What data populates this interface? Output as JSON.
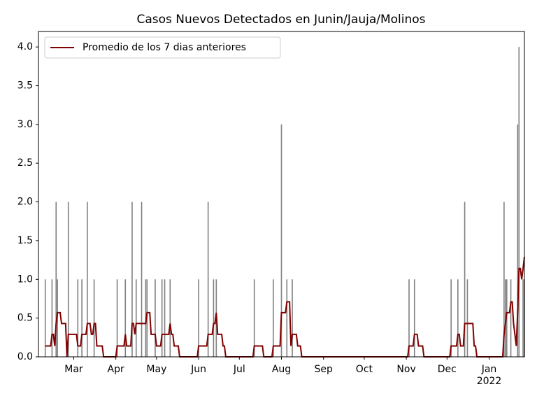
{
  "chart_data": {
    "type": "combo",
    "title": "Casos Nuevos Detectados en Junin/Jauja/Molinos",
    "xlim": [
      34,
      392
    ],
    "xticks": [
      {
        "value": 60,
        "label": "Mar"
      },
      {
        "value": 91,
        "label": "Apr"
      },
      {
        "value": 121,
        "label": "May"
      },
      {
        "value": 152,
        "label": "Jun"
      },
      {
        "value": 182,
        "label": "Jul"
      },
      {
        "value": 213,
        "label": "Aug"
      },
      {
        "value": 244,
        "label": "Sep"
      },
      {
        "value": 274,
        "label": "Oct"
      },
      {
        "value": 305,
        "label": "Nov"
      },
      {
        "value": 335,
        "label": "Dec"
      },
      {
        "value": 366,
        "label": "Jan\n2022"
      }
    ],
    "ylim": [
      0,
      4.2
    ],
    "yticks": [
      {
        "value": 0,
        "label": "0.0"
      },
      {
        "value": 0.5,
        "label": "0.5"
      },
      {
        "value": 1,
        "label": "1.0"
      },
      {
        "value": 1.5,
        "label": "1.5"
      },
      {
        "value": 2,
        "label": "2.0"
      },
      {
        "value": 2.5,
        "label": "2.5"
      },
      {
        "value": 3,
        "label": "3.0"
      },
      {
        "value": 3.5,
        "label": "3.5"
      },
      {
        "value": 4,
        "label": "4.0"
      }
    ],
    "legend": "upper left",
    "series": [
      {
        "type": "bar",
        "color": "#808080",
        "x": [
          39,
          44,
          47,
          48,
          56,
          63,
          66,
          70,
          75,
          92,
          98,
          103,
          106,
          110,
          113,
          114,
          120,
          125,
          127,
          131,
          152,
          159,
          163,
          165,
          193,
          207,
          213,
          217,
          221,
          307,
          311,
          338,
          343,
          348,
          350,
          377,
          378,
          379,
          382,
          387,
          388,
          391,
          392
        ],
        "values": [
          1,
          1,
          2,
          1,
          2,
          1,
          1,
          2,
          1,
          1,
          1,
          2,
          1,
          2,
          1,
          1,
          1,
          1,
          1,
          1,
          1,
          2,
          1,
          1,
          1,
          1,
          3,
          1,
          1,
          1,
          1,
          1,
          1,
          2,
          1,
          2,
          1,
          1,
          1,
          3,
          4,
          1,
          1
        ]
      },
      {
        "type": "line",
        "name": "Promedio de los 7 dias anteriores",
        "color": "#800000",
        "x": [
          39,
          43,
          44,
          45,
          46,
          47,
          48,
          50,
          51,
          54,
          55,
          56,
          62,
          63,
          65,
          66,
          69,
          70,
          72,
          73,
          74,
          75,
          76,
          77,
          81,
          82,
          91,
          92,
          97,
          98,
          99,
          102,
          103,
          104,
          105,
          106,
          113,
          114,
          116,
          117,
          120,
          121,
          124,
          125,
          130,
          131,
          132,
          133,
          134,
          137,
          138,
          151,
          152,
          158,
          159,
          162,
          163,
          164,
          165,
          166,
          169,
          170,
          171,
          172,
          192,
          193,
          199,
          200,
          206,
          207,
          212,
          213,
          216,
          217,
          219,
          220,
          221,
          224,
          225,
          227,
          228,
          306,
          307,
          310,
          311,
          313,
          314,
          317,
          318,
          337,
          338,
          342,
          343,
          344,
          345,
          347,
          348,
          354,
          355,
          356,
          357,
          376,
          377,
          378,
          379,
          381,
          382,
          383,
          384,
          385,
          386,
          387,
          388,
          389,
          390,
          391,
          392
        ],
        "values": [
          0.14,
          0.14,
          0.29,
          0.29,
          0.14,
          0.43,
          0.57,
          0.57,
          0.43,
          0.43,
          0,
          0.29,
          0.29,
          0.14,
          0.14,
          0.29,
          0.29,
          0.43,
          0.43,
          0.29,
          0.29,
          0.43,
          0.43,
          0.14,
          0.14,
          0,
          0,
          0.14,
          0.14,
          0.29,
          0.14,
          0.14,
          0.43,
          0.43,
          0.29,
          0.43,
          0.43,
          0.57,
          0.57,
          0.29,
          0.29,
          0.14,
          0.14,
          0.29,
          0.29,
          0.43,
          0.29,
          0.29,
          0.14,
          0.14,
          0,
          0,
          0.14,
          0.14,
          0.29,
          0.29,
          0.43,
          0.43,
          0.57,
          0.29,
          0.29,
          0.14,
          0.14,
          0,
          0,
          0.14,
          0.14,
          0,
          0,
          0.14,
          0.14,
          0.57,
          0.57,
          0.71,
          0.71,
          0.14,
          0.29,
          0.29,
          0.14,
          0.14,
          0,
          0,
          0.14,
          0.14,
          0.29,
          0.29,
          0.14,
          0.14,
          0,
          0,
          0.14,
          0.14,
          0.29,
          0.29,
          0.14,
          0.14,
          0.43,
          0.43,
          0.14,
          0.14,
          0,
          0,
          0.29,
          0.43,
          0.57,
          0.57,
          0.71,
          0.71,
          0.43,
          0.29,
          0.14,
          0.57,
          1.14,
          1.14,
          1.0,
          1.14,
          1.29
        ]
      }
    ]
  }
}
